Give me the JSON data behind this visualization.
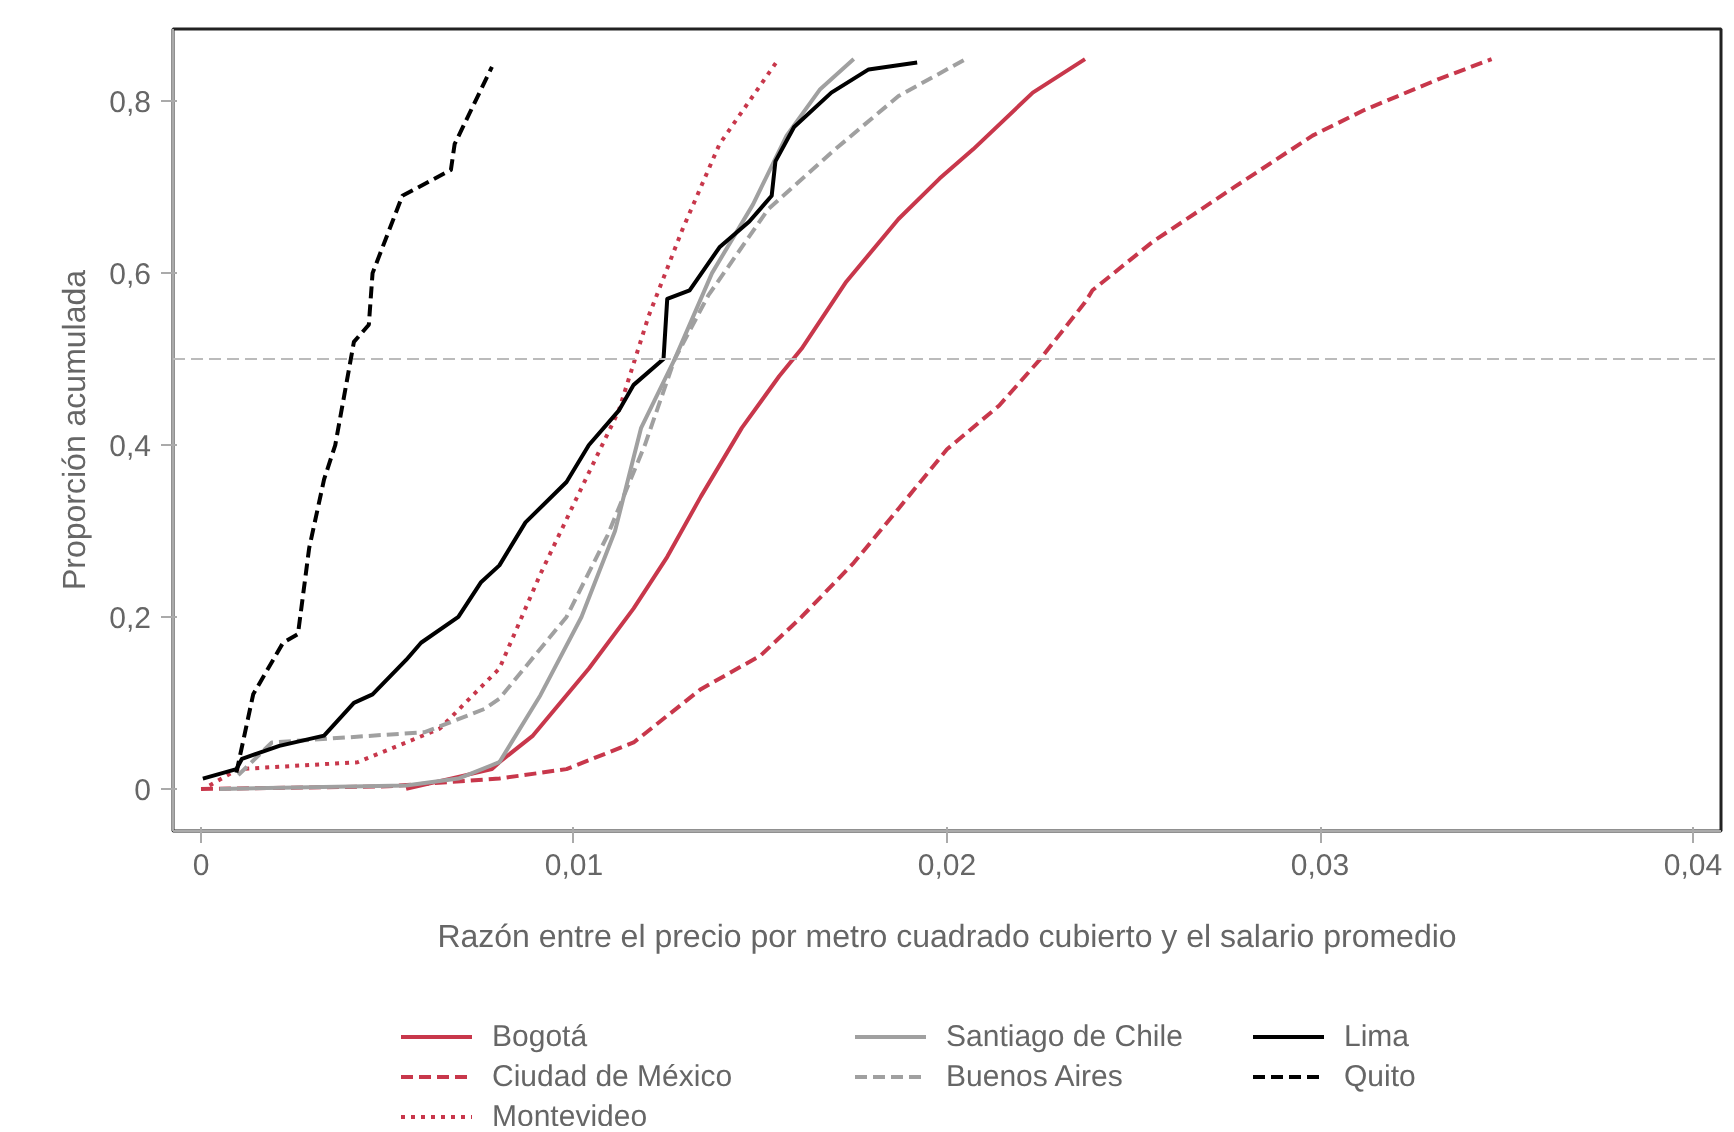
{
  "chart_data": {
    "type": "line",
    "xlabel": "Razón entre el precio por metro cuadrado cubierto y el salario promedio",
    "ylabel": "Proporción acumulada",
    "xlim": [
      -0.00075,
      0.04075
    ],
    "ylim": [
      -0.049,
      0.884
    ],
    "xticks": [
      {
        "value": 0,
        "label": "0"
      },
      {
        "value": 0.01,
        "label": "0,01"
      },
      {
        "value": 0.02,
        "label": "0,02"
      },
      {
        "value": 0.03,
        "label": "0,03"
      },
      {
        "value": 0.04,
        "label": "0,04"
      }
    ],
    "yticks": [
      {
        "value": 0,
        "label": "0"
      },
      {
        "value": 0.2,
        "label": "0,2"
      },
      {
        "value": 0.4,
        "label": "0,4"
      },
      {
        "value": 0.6,
        "label": "0,6"
      },
      {
        "value": 0.8,
        "label": "0,8"
      }
    ],
    "grid": false,
    "legend": "bottom",
    "marker": "none",
    "ref_lines": [
      {
        "axis": "y",
        "value": 0.5,
        "label": null,
        "color": "#bbbbbb",
        "line_style": "dashed"
      }
    ],
    "series": [
      {
        "name": "Bogotá",
        "color": "#c8374b",
        "line_style": "solid",
        "x": [
          0.0055,
          0.0078,
          0.008,
          0.0089,
          0.0104,
          0.0116,
          0.0125,
          0.0134,
          0.0145,
          0.0155,
          0.0161,
          0.0173,
          0.0187,
          0.0198,
          0.0207,
          0.0223,
          0.0237
        ],
        "values": [
          0.0,
          0.023,
          0.031,
          0.062,
          0.14,
          0.21,
          0.27,
          0.34,
          0.42,
          0.48,
          0.512,
          0.59,
          0.663,
          0.71,
          0.744,
          0.81,
          0.849
        ]
      },
      {
        "name": "Ciudad de México",
        "color": "#c8374b",
        "line_style": "dashed",
        "x": [
          0.0,
          0.005,
          0.008,
          0.0098,
          0.0116,
          0.0134,
          0.015,
          0.0161,
          0.0175,
          0.0187,
          0.02,
          0.0214,
          0.0225,
          0.0237,
          0.0239,
          0.0255,
          0.0277,
          0.0298,
          0.0312,
          0.0332,
          0.0346
        ],
        "values": [
          0.0,
          0.003,
          0.012,
          0.023,
          0.054,
          0.116,
          0.155,
          0.2,
          0.263,
          0.326,
          0.395,
          0.446,
          0.5,
          0.566,
          0.58,
          0.636,
          0.7,
          0.76,
          0.79,
          0.826,
          0.849
        ]
      },
      {
        "name": "Montevideo",
        "color": "#c8374b",
        "line_style": "dotted",
        "x": [
          0.00023,
          0.001,
          0.0042,
          0.0064,
          0.008,
          0.0091,
          0.0102,
          0.0112,
          0.012,
          0.0129,
          0.0134,
          0.0139,
          0.0155
        ],
        "values": [
          0.004,
          0.023,
          0.031,
          0.07,
          0.14,
          0.25,
          0.35,
          0.44,
          0.55,
          0.65,
          0.7,
          0.75,
          0.85
        ]
      },
      {
        "name": "Santiago de Chile",
        "color": "#a0a0a0",
        "line_style": "solid",
        "x": [
          0.0005,
          0.0055,
          0.0069,
          0.008,
          0.0091,
          0.0102,
          0.0111,
          0.0118,
          0.0127,
          0.0137,
          0.0148,
          0.0157,
          0.0166,
          0.0175
        ],
        "values": [
          0.0,
          0.004,
          0.012,
          0.031,
          0.109,
          0.2,
          0.3,
          0.42,
          0.5,
          0.6,
          0.68,
          0.76,
          0.814,
          0.849
        ]
      },
      {
        "name": "Buenos Aires",
        "color": "#a0a0a0",
        "line_style": "dashed",
        "x": [
          0.001,
          0.0019,
          0.006,
          0.0076,
          0.008,
          0.0098,
          0.0109,
          0.0119,
          0.0127,
          0.0136,
          0.0152,
          0.017,
          0.0187,
          0.0205
        ],
        "values": [
          0.016,
          0.054,
          0.066,
          0.093,
          0.105,
          0.2,
          0.295,
          0.4,
          0.5,
          0.574,
          0.674,
          0.744,
          0.806,
          0.849
        ]
      },
      {
        "name": "Lima",
        "color": "#000000",
        "line_style": "solid",
        "x": [
          5e-05,
          0.00095,
          0.0011,
          0.0021,
          0.0033,
          0.0041,
          0.0046,
          0.0055,
          0.0059,
          0.0069,
          0.0075,
          0.008,
          0.0087,
          0.0098,
          0.0104,
          0.0112,
          0.0116,
          0.0124,
          0.0125,
          0.0131,
          0.0139,
          0.0147,
          0.0153,
          0.0154,
          0.0159,
          0.0169,
          0.0179,
          0.0192
        ],
        "values": [
          0.012,
          0.023,
          0.035,
          0.05,
          0.062,
          0.1,
          0.11,
          0.15,
          0.17,
          0.2,
          0.24,
          0.26,
          0.31,
          0.357,
          0.4,
          0.44,
          0.47,
          0.5,
          0.57,
          0.58,
          0.63,
          0.66,
          0.69,
          0.73,
          0.77,
          0.81,
          0.837,
          0.845
        ]
      },
      {
        "name": "Quito",
        "color": "#000000",
        "line_style": "dashed",
        "x": [
          0.00095,
          0.0014,
          0.0022,
          0.0026,
          0.0029,
          0.0033,
          0.0036,
          0.0041,
          0.0045,
          0.0046,
          0.0054,
          0.0067,
          0.0068,
          0.0078
        ],
        "values": [
          0.019,
          0.11,
          0.17,
          0.18,
          0.28,
          0.36,
          0.4,
          0.52,
          0.54,
          0.6,
          0.69,
          0.72,
          0.75,
          0.84
        ]
      }
    ]
  }
}
